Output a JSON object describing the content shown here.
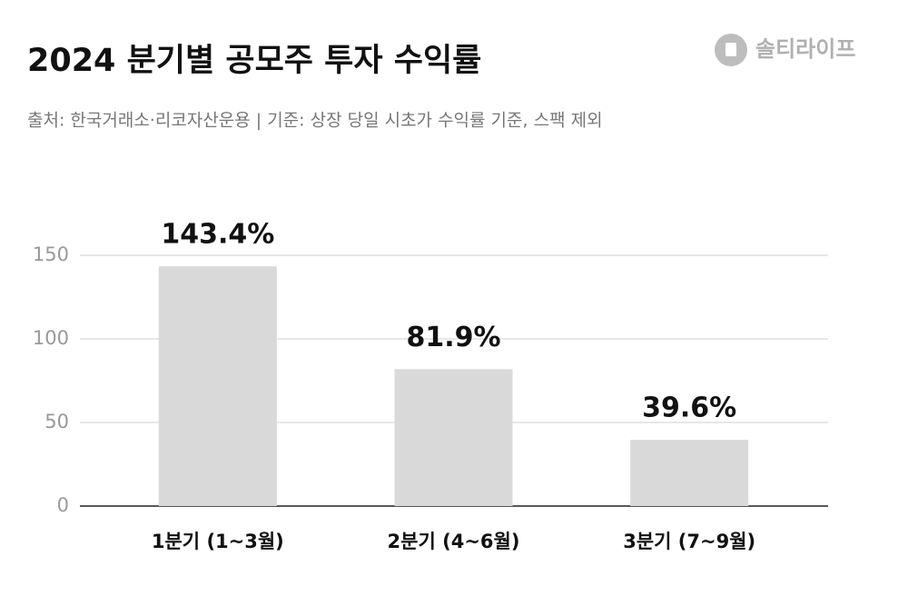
{
  "chart_data": {
    "type": "bar",
    "title": "2024 분기별 공모주 투자 수익률",
    "subtitle": "출처: 한국거래소·리코자산운용 | 기준: 상장 당일 시초가 수익률 기준, 스팩 제외",
    "brand": "솔티라이프",
    "categories": [
      "1분기 (1~3월)",
      "2분기 (4~6월)",
      "3분기 (7~9월)"
    ],
    "values": [
      143.4,
      81.9,
      39.6
    ],
    "value_labels": [
      "143.4%",
      "81.9%",
      "39.6%"
    ],
    "color": "#d9d9d9",
    "ylim": [
      0,
      150
    ],
    "yticks": [
      0,
      50,
      100,
      150
    ],
    "grid": true
  }
}
